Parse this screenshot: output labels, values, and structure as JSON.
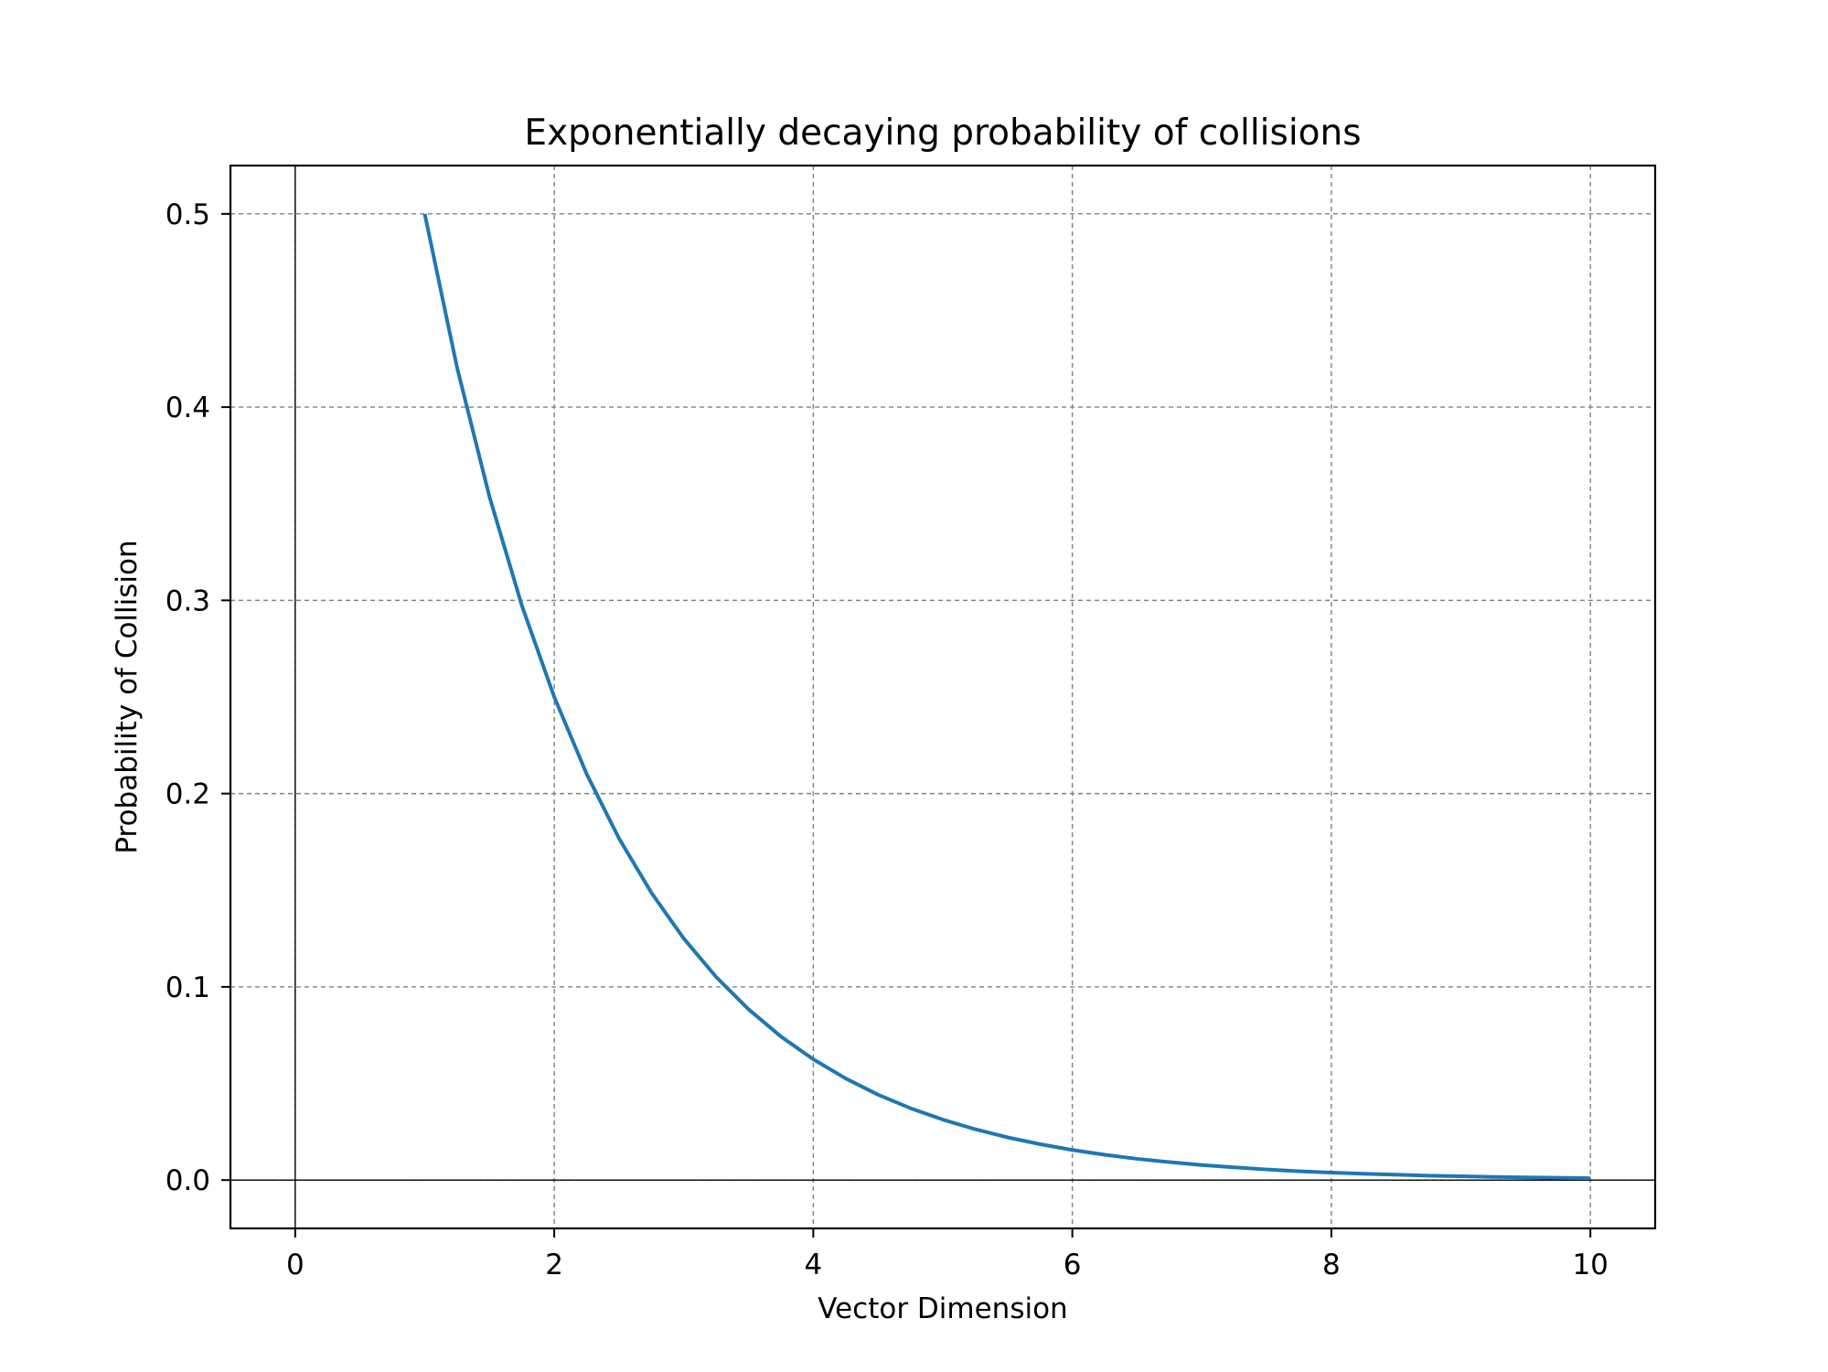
{
  "chart_data": {
    "type": "line",
    "title": "Exponentially decaying probability of collisions",
    "xlabel": "Vector Dimension",
    "ylabel": "Probability of Collision",
    "xlim": [
      -0.5,
      10.5
    ],
    "ylim": [
      -0.025,
      0.525
    ],
    "xticks": [
      0,
      2,
      4,
      6,
      8,
      10
    ],
    "xtick_labels": [
      "0",
      "2",
      "4",
      "6",
      "8",
      "10"
    ],
    "yticks": [
      0.0,
      0.1,
      0.2,
      0.3,
      0.4,
      0.5
    ],
    "ytick_labels": [
      "0.0",
      "0.1",
      "0.2",
      "0.3",
      "0.4",
      "0.5"
    ],
    "grid": true,
    "reference_lines": {
      "x": 0,
      "y": 0
    },
    "series": [
      {
        "color": "#1f77b4",
        "x": [
          1.0,
          1.25,
          1.5,
          1.75,
          2.0,
          2.25,
          2.5,
          2.75,
          3.0,
          3.25,
          3.5,
          3.75,
          4.0,
          4.25,
          4.5,
          4.75,
          5.0,
          5.25,
          5.5,
          5.75,
          6.0,
          6.25,
          6.5,
          6.75,
          7.0,
          7.25,
          7.5,
          7.75,
          8.0,
          8.25,
          8.5,
          8.75,
          9.0,
          9.25,
          9.5,
          9.75,
          10.0
        ],
        "y": [
          0.5,
          0.4204,
          0.3536,
          0.2973,
          0.25,
          0.2102,
          0.1768,
          0.1487,
          0.125,
          0.1051,
          0.0884,
          0.0743,
          0.0625,
          0.0526,
          0.0442,
          0.0372,
          0.0313,
          0.0263,
          0.0221,
          0.0186,
          0.0156,
          0.0131,
          0.011,
          0.0093,
          0.0078,
          0.0066,
          0.0055,
          0.0046,
          0.0039,
          0.0033,
          0.0028,
          0.0023,
          0.002,
          0.0016,
          0.0014,
          0.0012,
          0.001
        ]
      }
    ]
  }
}
